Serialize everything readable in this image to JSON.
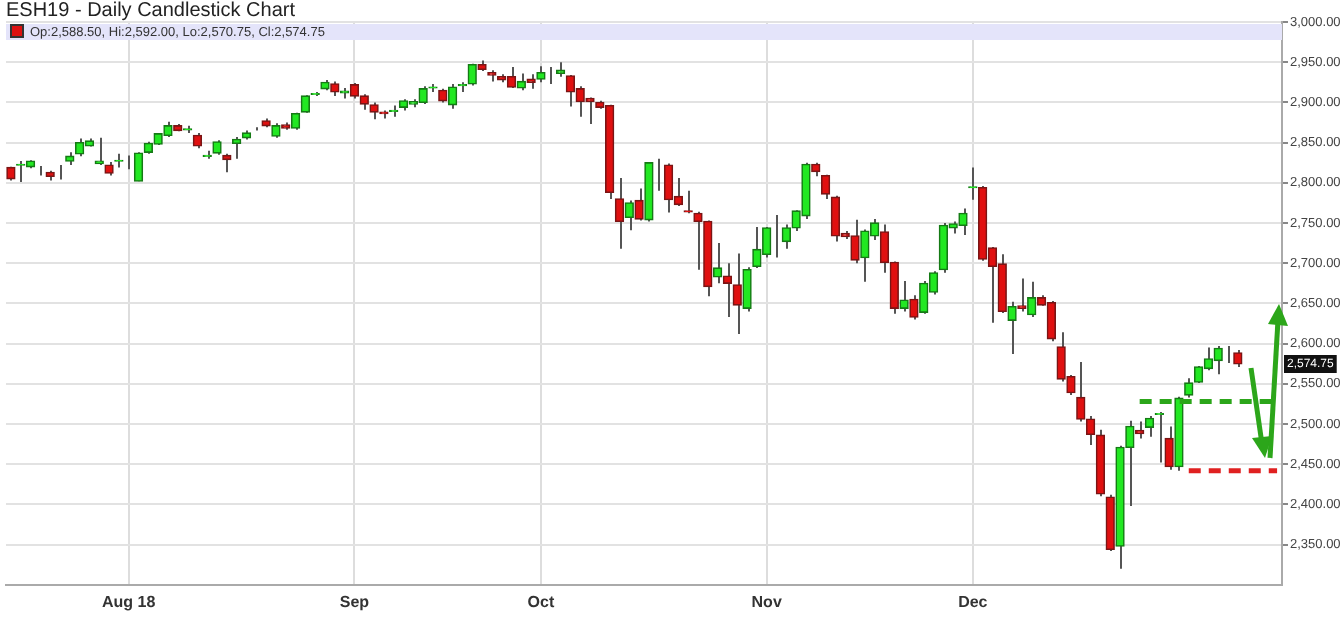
{
  "chart_data": {
    "type": "candlestick",
    "title": "ESH19 - Daily Candlestick Chart",
    "categories": [
      null,
      null,
      null,
      null,
      null,
      null,
      null,
      null,
      null,
      null,
      null,
      null,
      "Aug 18",
      null,
      null,
      null,
      null,
      null,
      null,
      null,
      null,
      null,
      null,
      null,
      null,
      null,
      null,
      null,
      null,
      null,
      null,
      null,
      null,
      null,
      null,
      "Sep",
      null,
      null,
      null,
      null,
      null,
      null,
      null,
      null,
      null,
      null,
      null,
      null,
      null,
      null,
      null,
      null,
      null,
      null,
      "Oct",
      null,
      null,
      null,
      null,
      null,
      null,
      null,
      null,
      null,
      null,
      null,
      null,
      null,
      null,
      null,
      null,
      null,
      null,
      null,
      null,
      null,
      null,
      "Nov",
      null,
      null,
      null,
      null,
      null,
      null,
      null,
      null,
      null,
      null,
      null,
      null,
      null,
      null,
      null,
      null,
      null,
      null,
      null,
      null,
      "Dec",
      null,
      null,
      null,
      null,
      null,
      null,
      null,
      null,
      null,
      null,
      null,
      null,
      null,
      null,
      null,
      null,
      null,
      null,
      null,
      null,
      null,
      null,
      null,
      null,
      null,
      null,
      null,
      null,
      null,
      null,
      null
    ],
    "ohlc": [
      [
        2819,
        2820,
        2803,
        2805
      ],
      [
        2822,
        2827,
        2801,
        2823
      ],
      [
        2820,
        2828,
        2818,
        2827
      ],
      [
        2816,
        2821,
        2809,
        2816
      ],
      [
        2813,
        2815,
        2803,
        2808
      ],
      [
        2822,
        2822,
        2804,
        2822
      ],
      [
        2827,
        2838,
        2822,
        2833
      ],
      [
        2836,
        2855,
        2833,
        2850
      ],
      [
        2846,
        2855,
        2845,
        2852
      ],
      [
        2824,
        2856,
        2822,
        2827
      ],
      [
        2822,
        2826,
        2809,
        2812
      ],
      [
        2827,
        2836,
        2819,
        2828
      ],
      [
        2822,
        2834,
        2817,
        2822
      ],
      [
        2802,
        2838,
        2802,
        2837
      ],
      [
        2838,
        2851,
        2836,
        2849
      ],
      [
        2848,
        2862,
        2847,
        2861
      ],
      [
        2859,
        2876,
        2857,
        2871
      ],
      [
        2871,
        2873,
        2864,
        2865
      ],
      [
        2866,
        2871,
        2862,
        2867
      ],
      [
        2859,
        2862,
        2843,
        2846
      ],
      [
        2833,
        2840,
        2830,
        2834
      ],
      [
        2837,
        2853,
        2835,
        2851
      ],
      [
        2834,
        2836,
        2813,
        2829
      ],
      [
        2849,
        2857,
        2830,
        2854
      ],
      [
        2856,
        2865,
        2854,
        2862
      ],
      [
        2867,
        2869,
        2865,
        2867
      ],
      [
        2877,
        2880,
        2869,
        2871
      ],
      [
        2858,
        2874,
        2856,
        2871
      ],
      [
        2872,
        2875,
        2866,
        2868
      ],
      [
        2868,
        2887,
        2866,
        2886
      ],
      [
        2888,
        2909,
        2887,
        2908
      ],
      [
        2910,
        2913,
        2908,
        2911
      ],
      [
        2917,
        2928,
        2915,
        2925
      ],
      [
        2923,
        2926,
        2908,
        2913
      ],
      [
        2912,
        2918,
        2905,
        2914
      ],
      [
        2922,
        2924,
        2905,
        2908
      ],
      [
        2908,
        2910,
        2891,
        2898
      ],
      [
        2897,
        2900,
        2879,
        2888
      ],
      [
        2888,
        2890,
        2880,
        2886
      ],
      [
        2889,
        2896,
        2882,
        2890
      ],
      [
        2894,
        2904,
        2890,
        2902
      ],
      [
        2898,
        2904,
        2894,
        2901
      ],
      [
        2900,
        2920,
        2898,
        2917
      ],
      [
        2918,
        2923,
        2913,
        2919
      ],
      [
        2915,
        2917,
        2900,
        2902
      ],
      [
        2897,
        2923,
        2892,
        2919
      ],
      [
        2921,
        2925,
        2913,
        2922
      ],
      [
        2923,
        2948,
        2921,
        2947
      ],
      [
        2947,
        2952,
        2939,
        2941
      ],
      [
        2937,
        2940,
        2926,
        2934
      ],
      [
        2932,
        2935,
        2925,
        2928
      ],
      [
        2932,
        2944,
        2918,
        2919
      ],
      [
        2918,
        2936,
        2915,
        2926
      ],
      [
        2929,
        2935,
        2917,
        2925
      ],
      [
        2929,
        2945,
        2925,
        2937
      ],
      [
        2939,
        2944,
        2923,
        2939
      ],
      [
        2936,
        2950,
        2932,
        2940
      ],
      [
        2933,
        2934,
        2895,
        2913
      ],
      [
        2917,
        2920,
        2882,
        2901
      ],
      [
        2905,
        2906,
        2873,
        2901
      ],
      [
        2900,
        2902,
        2892,
        2894
      ],
      [
        2896,
        2897,
        2780,
        2788
      ],
      [
        2780,
        2806,
        2718,
        2752
      ],
      [
        2757,
        2778,
        2741,
        2775
      ],
      [
        2778,
        2793,
        2753,
        2755
      ],
      [
        2754,
        2826,
        2752,
        2825
      ],
      [
        2823,
        2830,
        2790,
        2823
      ],
      [
        2822,
        2824,
        2763,
        2779
      ],
      [
        2783,
        2806,
        2771,
        2773
      ],
      [
        2765,
        2790,
        2762,
        2764
      ],
      [
        2762,
        2764,
        2692,
        2752
      ],
      [
        2752,
        2753,
        2659,
        2671
      ],
      [
        2683,
        2725,
        2675,
        2694
      ],
      [
        2684,
        2700,
        2633,
        2675
      ],
      [
        2673,
        2712,
        2612,
        2648
      ],
      [
        2644,
        2695,
        2640,
        2692
      ],
      [
        2696,
        2745,
        2694,
        2717
      ],
      [
        2711,
        2745,
        2707,
        2744
      ],
      [
        2730,
        2760,
        2707,
        2730
      ],
      [
        2727,
        2748,
        2718,
        2744
      ],
      [
        2744,
        2766,
        2740,
        2765
      ],
      [
        2759,
        2825,
        2755,
        2823
      ],
      [
        2823,
        2825,
        2808,
        2814
      ],
      [
        2809,
        2810,
        2780,
        2786
      ],
      [
        2782,
        2784,
        2727,
        2734
      ],
      [
        2737,
        2740,
        2730,
        2733
      ],
      [
        2734,
        2754,
        2700,
        2704
      ],
      [
        2707,
        2742,
        2677,
        2740
      ],
      [
        2734,
        2755,
        2729,
        2750
      ],
      [
        2739,
        2748,
        2688,
        2701
      ],
      [
        2701,
        2702,
        2637,
        2644
      ],
      [
        2644,
        2678,
        2640,
        2654
      ],
      [
        2655,
        2660,
        2630,
        2633
      ],
      [
        2639,
        2678,
        2637,
        2675
      ],
      [
        2664,
        2690,
        2661,
        2688
      ],
      [
        2692,
        2750,
        2688,
        2747
      ],
      [
        2744,
        2752,
        2737,
        2749
      ],
      [
        2747,
        2768,
        2735,
        2762
      ],
      [
        2794,
        2819,
        2779,
        2795
      ],
      [
        2794,
        2796,
        2703,
        2705
      ],
      [
        2719,
        2720,
        2626,
        2696
      ],
      [
        2699,
        2711,
        2638,
        2640
      ],
      [
        2629,
        2652,
        2587,
        2646
      ],
      [
        2647,
        2681,
        2640,
        2644
      ],
      [
        2636,
        2677,
        2633,
        2657
      ],
      [
        2657,
        2660,
        2647,
        2648
      ],
      [
        2651,
        2653,
        2603,
        2606
      ],
      [
        2596,
        2614,
        2553,
        2556
      ],
      [
        2559,
        2561,
        2536,
        2539
      ],
      [
        2533,
        2577,
        2503,
        2506
      ],
      [
        2506,
        2510,
        2474,
        2487
      ],
      [
        2486,
        2493,
        2410,
        2413
      ],
      [
        2409,
        2412,
        2342,
        2344
      ],
      [
        2348,
        2473,
        2320,
        2471
      ],
      [
        2471,
        2504,
        2398,
        2497
      ],
      [
        2492,
        2503,
        2482,
        2488
      ],
      [
        2496,
        2510,
        2484,
        2507
      ],
      [
        2512,
        2515,
        2452,
        2513
      ],
      [
        2482,
        2497,
        2443,
        2447
      ],
      [
        2447,
        2534,
        2442,
        2532
      ],
      [
        2536,
        2557,
        2533,
        2551
      ],
      [
        2552,
        2572,
        2551,
        2571
      ],
      [
        2569,
        2595,
        2567,
        2581
      ],
      [
        2579,
        2597,
        2562,
        2594
      ],
      [
        2594,
        2597,
        2576,
        2594
      ],
      [
        2588.5,
        2592,
        2570.75,
        2574.75
      ],
      null,
      null,
      null,
      null
    ],
    "series": [
      {
        "type": "line",
        "color": "#2ca61a",
        "line_style": "dashed",
        "values": [
          null,
          null,
          null,
          null,
          null,
          null,
          null,
          null,
          null,
          null,
          null,
          null,
          null,
          null,
          null,
          null,
          null,
          null,
          null,
          null,
          null,
          null,
          null,
          null,
          null,
          null,
          null,
          null,
          null,
          null,
          null,
          null,
          null,
          null,
          null,
          null,
          null,
          null,
          null,
          null,
          null,
          null,
          null,
          null,
          null,
          null,
          null,
          null,
          null,
          null,
          null,
          null,
          null,
          null,
          null,
          null,
          null,
          null,
          null,
          null,
          null,
          null,
          null,
          null,
          null,
          null,
          null,
          null,
          null,
          null,
          null,
          null,
          null,
          null,
          null,
          null,
          null,
          null,
          null,
          null,
          null,
          null,
          null,
          null,
          null,
          null,
          null,
          null,
          null,
          null,
          null,
          null,
          null,
          null,
          null,
          null,
          null,
          null,
          null,
          null,
          null,
          null,
          null,
          null,
          null,
          null,
          null,
          null,
          null,
          null,
          null,
          null,
          null,
          null,
          null,
          2528,
          2528,
          2528,
          2528,
          2528,
          2528,
          2528,
          2528,
          2528,
          2528,
          2528,
          2528,
          2528,
          2528,
          2528
        ]
      },
      {
        "type": "line",
        "color": "#e02020",
        "line_style": "dashed",
        "values": [
          null,
          null,
          null,
          null,
          null,
          null,
          null,
          null,
          null,
          null,
          null,
          null,
          null,
          null,
          null,
          null,
          null,
          null,
          null,
          null,
          null,
          null,
          null,
          null,
          null,
          null,
          null,
          null,
          null,
          null,
          null,
          null,
          null,
          null,
          null,
          null,
          null,
          null,
          null,
          null,
          null,
          null,
          null,
          null,
          null,
          null,
          null,
          null,
          null,
          null,
          null,
          null,
          null,
          null,
          null,
          null,
          null,
          null,
          null,
          null,
          null,
          null,
          null,
          null,
          null,
          null,
          null,
          null,
          null,
          null,
          null,
          null,
          null,
          null,
          null,
          null,
          null,
          null,
          null,
          null,
          null,
          null,
          null,
          null,
          null,
          null,
          null,
          null,
          null,
          null,
          null,
          null,
          null,
          null,
          null,
          null,
          null,
          null,
          null,
          null,
          null,
          null,
          null,
          null,
          null,
          null,
          null,
          null,
          null,
          null,
          null,
          null,
          null,
          null,
          null,
          null,
          null,
          null,
          null,
          null,
          2442,
          2442,
          2442,
          2442,
          2442,
          2442,
          2442,
          2442,
          2442,
          2442
        ]
      }
    ],
    "ylim": [
      2300,
      3000
    ],
    "yticks": [
      {
        "value": 2350,
        "label": "2,350.00"
      },
      {
        "value": 2400,
        "label": "2,400.00"
      },
      {
        "value": 2450,
        "label": "2,450.00"
      },
      {
        "value": 2500,
        "label": "2,500.00"
      },
      {
        "value": 2550,
        "label": "2,550.00"
      },
      {
        "value": 2600,
        "label": "2,600.00"
      },
      {
        "value": 2650,
        "label": "2,650.00"
      },
      {
        "value": 2700,
        "label": "2,700.00"
      },
      {
        "value": 2750,
        "label": "2,750.00"
      },
      {
        "value": 2800,
        "label": "2,800.00"
      },
      {
        "value": 2850,
        "label": "2,850.00"
      },
      {
        "value": 2900,
        "label": "2,900.00"
      },
      {
        "value": 2950,
        "label": "2,950.00"
      },
      {
        "value": 3000,
        "label": "3,000.00"
      }
    ],
    "annotations": [
      "Op:2,588.50, Hi:2,592.00, Lo:2,570.75, Cl:2,574.75",
      {
        "text": "2,574.75",
        "y": 2574.75
      }
    ],
    "grid": true,
    "legend": false
  }
}
